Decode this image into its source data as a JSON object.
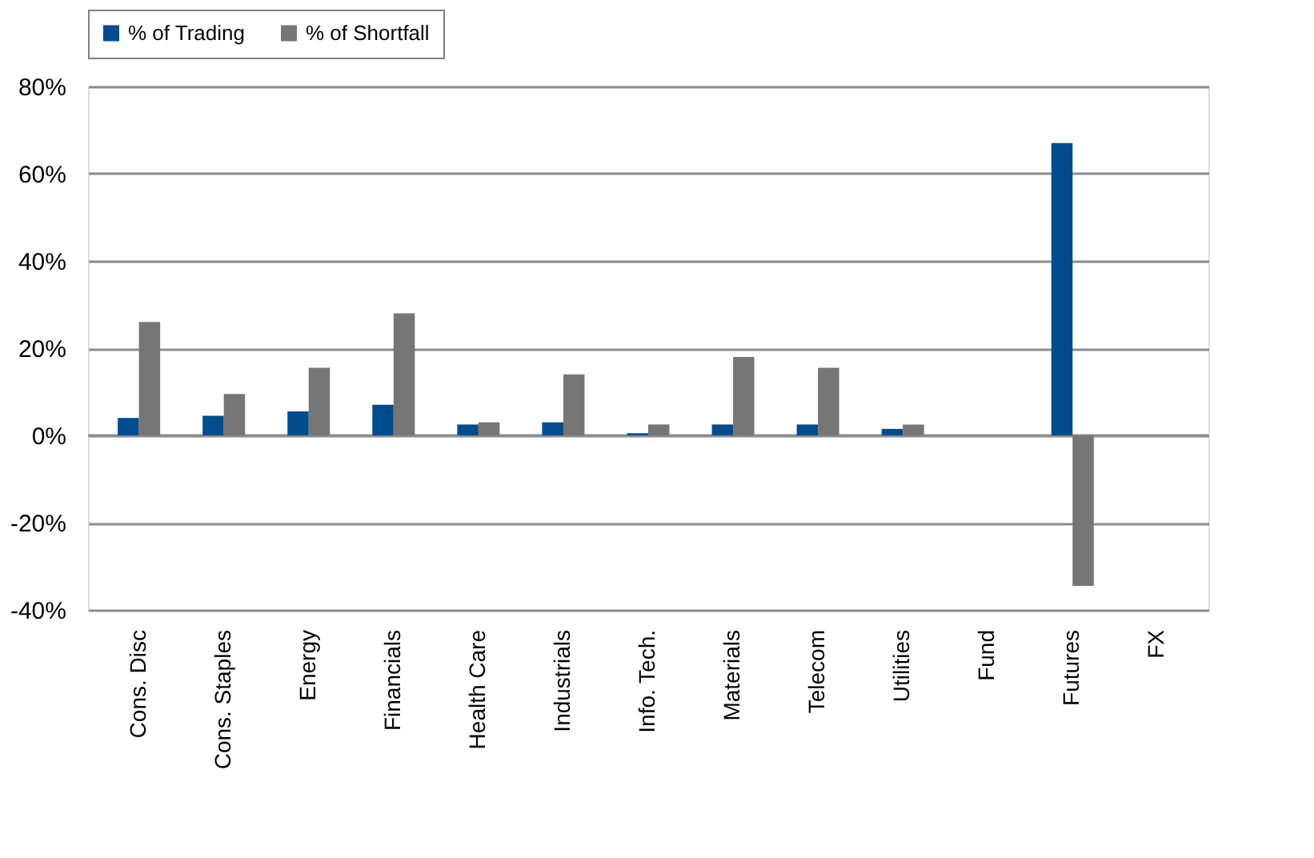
{
  "chart_data": {
    "type": "bar",
    "categories": [
      "Cons. Disc",
      "Cons.  Staples",
      "Energy",
      "Financials",
      "Health Care",
      "Industrials",
      "Info. Tech.",
      "Materials",
      "Telecom",
      "Utilities",
      "Fund",
      "Futures",
      "FX"
    ],
    "series": [
      {
        "name": "% of Trading",
        "color": "#004c8c",
        "values": [
          4,
          4.5,
          5.5,
          7,
          2.5,
          3,
          0.5,
          2.5,
          2.5,
          1.5,
          0,
          67,
          0
        ]
      },
      {
        "name": "% of Shortfall",
        "color": "#767676",
        "values": [
          26,
          9.5,
          15.5,
          28,
          3,
          14,
          2.5,
          18,
          15.5,
          2.5,
          0,
          -34.5,
          0
        ]
      }
    ],
    "ylim": [
      -40,
      80
    ],
    "yticks": [
      {
        "value": -40,
        "label": "-40%"
      },
      {
        "value": -20,
        "label": "-20%"
      },
      {
        "value": 0,
        "label": "0%"
      },
      {
        "value": 20,
        "label": "20%"
      },
      {
        "value": 40,
        "label": "40%"
      },
      {
        "value": 60,
        "label": "60%"
      },
      {
        "value": 80,
        "label": "80%"
      }
    ],
    "grid": "y",
    "legend": "top"
  }
}
